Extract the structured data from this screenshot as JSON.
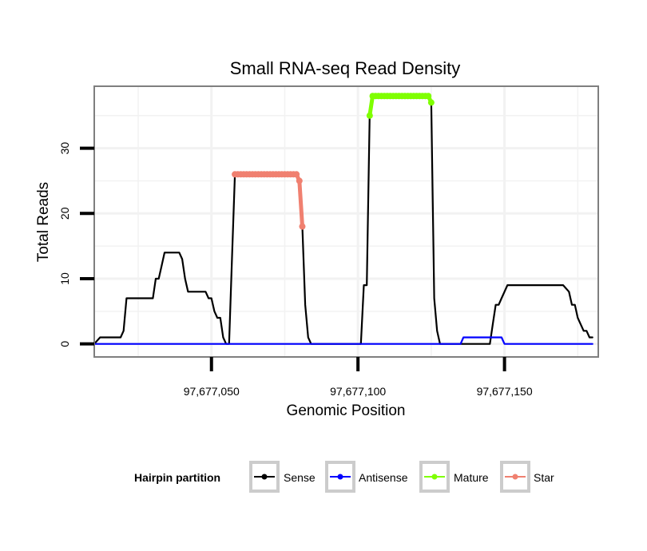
{
  "chart_data": {
    "type": "line",
    "title": "Small RNA-seq Read Density",
    "xlabel": "Genomic Position",
    "ylabel": "Total Reads",
    "xlim": [
      97677010,
      97677182
    ],
    "ylim": [
      -2,
      39.5
    ],
    "x_ticks": [
      {
        "value": 97677050,
        "label": "97,677,050"
      },
      {
        "value": 97677100,
        "label": "97,677,100"
      },
      {
        "value": 97677150,
        "label": "97,677,150"
      }
    ],
    "y_ticks": [
      {
        "value": 0,
        "label": "0"
      },
      {
        "value": 10,
        "label": "10"
      },
      {
        "value": 20,
        "label": "20"
      },
      {
        "value": 30,
        "label": "30"
      }
    ],
    "grid": true,
    "legend": {
      "title": "Hairpin partition",
      "position": "bottom",
      "entries": [
        "Sense",
        "Antisense",
        "Mature",
        "Star"
      ]
    },
    "series": [
      {
        "name": "Sense",
        "color": "#000000",
        "show_points": false,
        "x": [
          97677010,
          97677012,
          97677019,
          97677020,
          97677021,
          97677029,
          97677030,
          97677031,
          97677032,
          97677033,
          97677034,
          97677039,
          97677040,
          97677041,
          97677042,
          97677048,
          97677049,
          97677050,
          97677051,
          97677052,
          97677053,
          97677054,
          97677055,
          97677056,
          97677057,
          97677058,
          97677059,
          97677060,
          97677061,
          97677062,
          97677063,
          97677064,
          97677065,
          97677066,
          97677067,
          97677068,
          97677069,
          97677070,
          97677071,
          97677072,
          97677073,
          97677074,
          97677075,
          97677076,
          97677077,
          97677078,
          97677079,
          97677080,
          97677081,
          97677082,
          97677083,
          97677084,
          97677085,
          97677090,
          97677095,
          97677101,
          97677102,
          97677103,
          97677104,
          97677105,
          97677106,
          97677107,
          97677108,
          97677124,
          97677125,
          97677126,
          97677127,
          97677128,
          97677129,
          97677130,
          97677135,
          97677145,
          97677146,
          97677147,
          97677148,
          97677149,
          97677150,
          97677151,
          97677152,
          97677153,
          97677154,
          97677155,
          97677165,
          97677170,
          97677172,
          97677173,
          97677174,
          97677175,
          97677176,
          97677177,
          97677178,
          97677179,
          97677180
        ],
        "y": [
          0,
          1,
          1,
          2,
          7,
          7,
          7,
          10,
          10,
          12,
          14,
          14,
          13,
          10,
          8,
          8,
          7,
          7,
          5,
          4,
          4,
          1,
          0,
          0,
          13,
          26,
          26,
          26,
          26,
          26,
          26,
          26,
          26,
          26,
          26,
          26,
          26,
          26,
          26,
          26,
          26,
          26,
          26,
          26,
          26,
          26,
          26,
          25,
          18,
          6,
          1,
          0,
          0,
          0,
          0,
          0,
          9,
          9,
          35,
          38,
          38,
          38,
          38,
          38,
          37,
          7,
          2,
          0,
          0,
          0,
          0,
          0,
          3,
          6,
          6,
          7,
          8,
          9,
          9,
          9,
          9,
          9,
          9,
          9,
          8,
          6,
          6,
          4,
          3,
          2,
          2,
          1,
          1
        ]
      },
      {
        "name": "Antisense",
        "color": "#0000ff",
        "show_points": false,
        "x": [
          97677010,
          97677135,
          97677136,
          97677149,
          97677150,
          97677180
        ],
        "y": [
          0,
          0,
          1,
          1,
          0,
          0
        ]
      },
      {
        "name": "Mature",
        "color": "#7fff00",
        "show_points": true,
        "x": [
          97677104,
          97677105,
          97677106,
          97677107,
          97677108,
          97677109,
          97677110,
          97677111,
          97677112,
          97677113,
          97677114,
          97677115,
          97677116,
          97677117,
          97677118,
          97677119,
          97677120,
          97677121,
          97677122,
          97677123,
          97677124,
          97677125
        ],
        "y": [
          35,
          38,
          38,
          38,
          38,
          38,
          38,
          38,
          38,
          38,
          38,
          38,
          38,
          38,
          38,
          38,
          38,
          38,
          38,
          38,
          38,
          37
        ]
      },
      {
        "name": "Star",
        "color": "#f08070",
        "show_points": true,
        "x": [
          97677058,
          97677059,
          97677060,
          97677061,
          97677062,
          97677063,
          97677064,
          97677065,
          97677066,
          97677067,
          97677068,
          97677069,
          97677070,
          97677071,
          97677072,
          97677073,
          97677074,
          97677075,
          97677076,
          97677077,
          97677078,
          97677079,
          97677080,
          97677081
        ],
        "y": [
          26,
          26,
          26,
          26,
          26,
          26,
          26,
          26,
          26,
          26,
          26,
          26,
          26,
          26,
          26,
          26,
          26,
          26,
          26,
          26,
          26,
          26,
          25,
          18
        ]
      }
    ]
  },
  "colors": {
    "panel_border": "#7f7f7f",
    "grid": "#f2f2f2",
    "legend_key_border": "#cccccc"
  }
}
